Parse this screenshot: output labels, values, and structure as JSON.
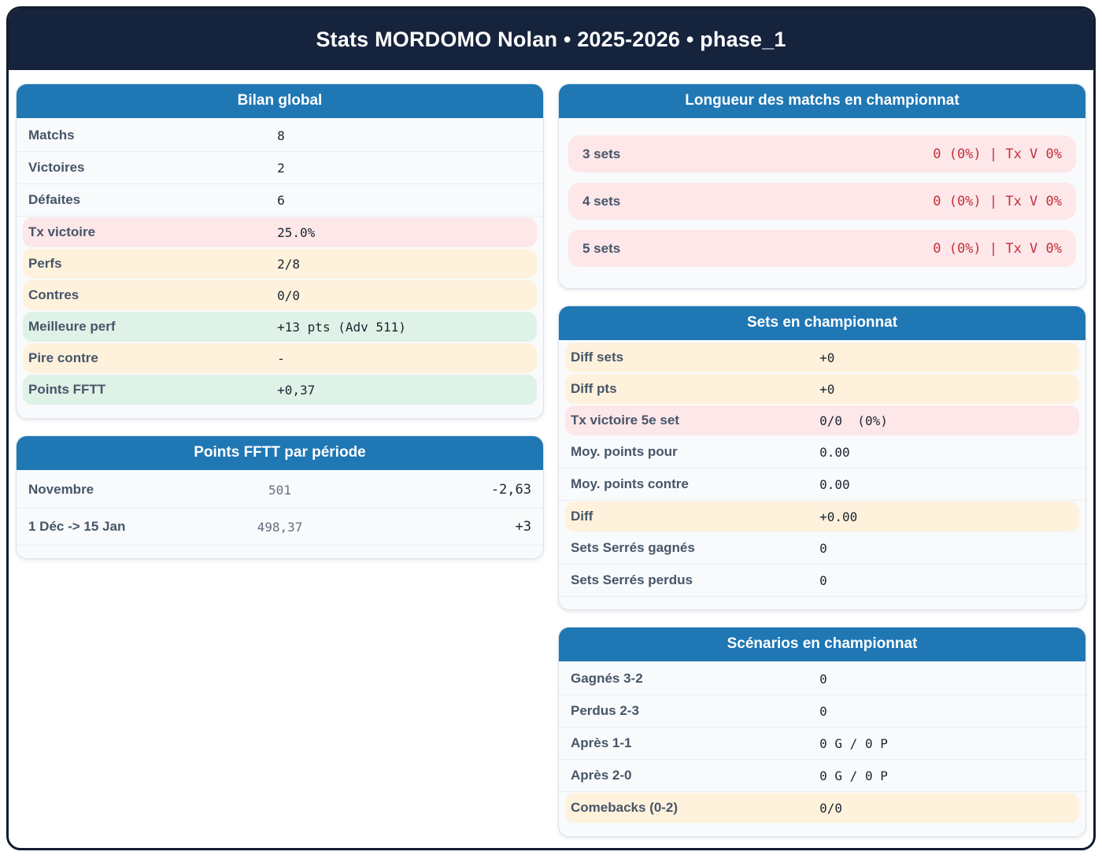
{
  "page": {
    "title": "Stats MORDOMO Nolan • 2025-2026 • phase_1"
  },
  "colors": {
    "header_navy": "#16233c",
    "card_header_blue": "#1f77b4",
    "highlight_pink": "#fde7e9",
    "highlight_yellow": "#fff2dc",
    "highlight_green": "#dff2e7",
    "alert_red_text": "#c4303c"
  },
  "cards": {
    "bilan_global": {
      "title": "Bilan global",
      "rows": [
        {
          "label": "Matchs",
          "value": "8",
          "highlight": "none"
        },
        {
          "label": "Victoires",
          "value": "2",
          "highlight": "none"
        },
        {
          "label": "Défaites",
          "value": "6",
          "highlight": "none"
        },
        {
          "label": "Tx victoire",
          "value": "25.0%",
          "highlight": "pink"
        },
        {
          "label": "Perfs",
          "value": "2/8",
          "highlight": "yellow"
        },
        {
          "label": "Contres",
          "value": "0/0",
          "highlight": "yellow"
        },
        {
          "label": "Meilleure perf",
          "value": "+13 pts (Adv 511)",
          "highlight": "green"
        },
        {
          "label": "Pire contre",
          "value": "-",
          "highlight": "yellow"
        },
        {
          "label": "Points FFTT",
          "value": "+0,37",
          "highlight": "green"
        }
      ]
    },
    "points_periode": {
      "title": "Points FFTT par période",
      "rows": [
        {
          "label": "Novembre",
          "points": "501",
          "delta": "-2,63"
        },
        {
          "label": "1 Déc -> 15 Jan",
          "points": "498,37",
          "delta": "+3"
        }
      ]
    },
    "longueur_matchs": {
      "title": "Longueur des matchs en championnat",
      "rows": [
        {
          "label": "3 sets",
          "value": "0 (0%) | Tx V 0%"
        },
        {
          "label": "4 sets",
          "value": "0 (0%) | Tx V 0%"
        },
        {
          "label": "5 sets",
          "value": "0 (0%) | Tx V 0%"
        }
      ]
    },
    "sets_championnat": {
      "title": "Sets en championnat",
      "rows": [
        {
          "label": "Diff sets",
          "value": "+0",
          "highlight": "yellow"
        },
        {
          "label": "Diff pts",
          "value": "+0",
          "highlight": "yellow"
        },
        {
          "label": "Tx victoire 5e set",
          "value": "0/0  (0%)",
          "highlight": "pink"
        },
        {
          "label": "Moy. points pour",
          "value": "0.00",
          "highlight": "none"
        },
        {
          "label": "Moy. points contre",
          "value": "0.00",
          "highlight": "none"
        },
        {
          "label": "Diff",
          "value": "+0.00",
          "highlight": "yellow"
        },
        {
          "label": "Sets Serrés gagnés",
          "value": "0",
          "highlight": "none"
        },
        {
          "label": "Sets Serrés perdus",
          "value": "0",
          "highlight": "none"
        }
      ]
    },
    "scenarios": {
      "title": "Scénarios en championnat",
      "rows": [
        {
          "label": "Gagnés 3-2",
          "value": "0",
          "highlight": "none"
        },
        {
          "label": "Perdus 2-3",
          "value": "0",
          "highlight": "none"
        },
        {
          "label": "Après 1-1",
          "value": "0 G / 0 P",
          "highlight": "none"
        },
        {
          "label": "Après 2-0",
          "value": "0 G / 0 P",
          "highlight": "none"
        },
        {
          "label": "Comebacks (0-2)",
          "value": "0/0",
          "highlight": "yellow"
        }
      ]
    }
  }
}
